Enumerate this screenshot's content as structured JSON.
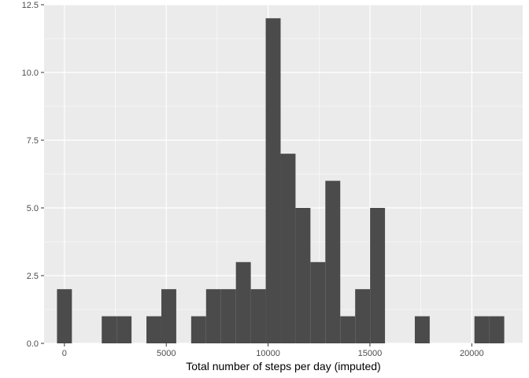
{
  "chart_data": {
    "type": "bar",
    "style": "histogram",
    "title": "",
    "xlabel": "Total number of steps per day (imputed)",
    "ylabel": "",
    "xlim": [
      -1000,
      22500
    ],
    "ylim": [
      0,
      12.5
    ],
    "grid": true,
    "bin_width": 732,
    "bins": [
      {
        "x": 0,
        "count": 2
      },
      {
        "x": 732,
        "count": 0
      },
      {
        "x": 1464,
        "count": 0
      },
      {
        "x": 2196,
        "count": 1
      },
      {
        "x": 2928,
        "count": 1
      },
      {
        "x": 3660,
        "count": 0
      },
      {
        "x": 4392,
        "count": 1
      },
      {
        "x": 5124,
        "count": 2
      },
      {
        "x": 5856,
        "count": 0
      },
      {
        "x": 6588,
        "count": 1
      },
      {
        "x": 7320,
        "count": 2
      },
      {
        "x": 8052,
        "count": 2
      },
      {
        "x": 8784,
        "count": 3
      },
      {
        "x": 9516,
        "count": 2
      },
      {
        "x": 10248,
        "count": 12
      },
      {
        "x": 10980,
        "count": 7
      },
      {
        "x": 11712,
        "count": 5
      },
      {
        "x": 12444,
        "count": 3
      },
      {
        "x": 13176,
        "count": 6
      },
      {
        "x": 13908,
        "count": 1
      },
      {
        "x": 14640,
        "count": 2
      },
      {
        "x": 15372,
        "count": 5
      },
      {
        "x": 16104,
        "count": 0
      },
      {
        "x": 16836,
        "count": 0
      },
      {
        "x": 17568,
        "count": 1
      },
      {
        "x": 18300,
        "count": 0
      },
      {
        "x": 19032,
        "count": 0
      },
      {
        "x": 19764,
        "count": 0
      },
      {
        "x": 20496,
        "count": 1
      },
      {
        "x": 21228,
        "count": 1
      }
    ],
    "x_ticks": [
      0,
      5000,
      10000,
      15000,
      20000
    ],
    "x_tick_labels": [
      "0",
      "5000",
      "10000",
      "15000",
      "20000"
    ],
    "y_ticks": [
      0,
      2.5,
      5,
      7.5,
      10,
      12.5
    ],
    "y_tick_labels": [
      "0.0",
      "2.5",
      "5.0",
      "7.5",
      "10.0",
      "12.5"
    ],
    "colors": {
      "panel": "#ebebeb",
      "grid_major": "#ffffff",
      "bar": "#4b4b4b",
      "tick": "#333333"
    }
  }
}
